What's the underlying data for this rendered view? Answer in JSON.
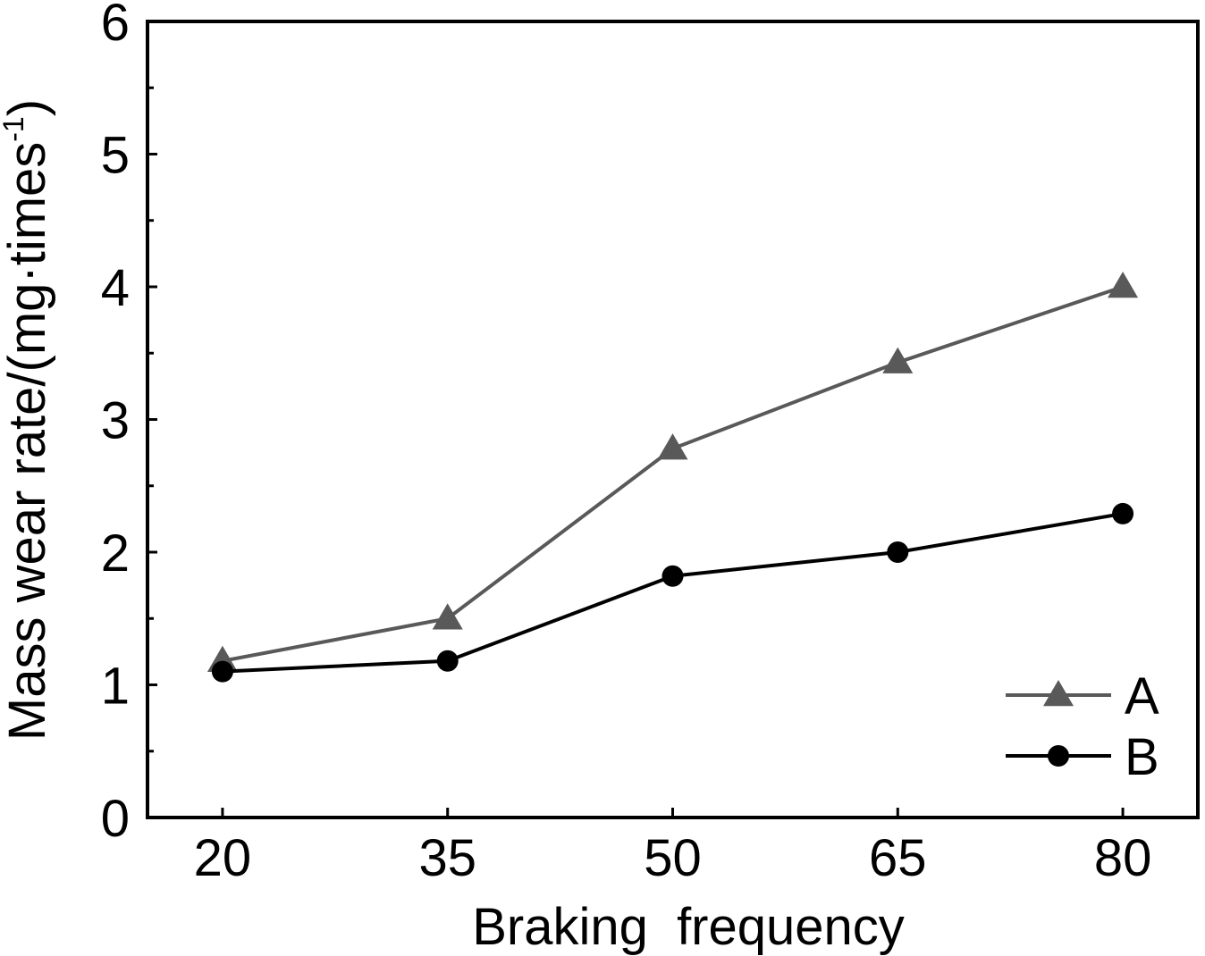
{
  "chart_data": {
    "type": "line",
    "title": "",
    "xlabel": "Braking  frequency",
    "ylabel": {
      "main": "Mass wear rate/(mg·times",
      "superscript": "-1",
      "close": ")"
    },
    "x": [
      20,
      35,
      50,
      65,
      80
    ],
    "x_tick_labels": [
      "20",
      "35",
      "50",
      "65",
      "80"
    ],
    "xlim": [
      15,
      85
    ],
    "ylim": [
      0,
      6
    ],
    "y_ticks": [
      0,
      1,
      2,
      3,
      4,
      5,
      6
    ],
    "y_tick_labels": [
      "0",
      "1",
      "2",
      "3",
      "4",
      "5",
      "6"
    ],
    "y_minor_step": 0.5,
    "grid": false,
    "legend_position": "bottom-right",
    "series": [
      {
        "name": "A",
        "marker": "triangle",
        "color": "#595959",
        "values": [
          1.18,
          1.5,
          2.78,
          3.43,
          4.0
        ]
      },
      {
        "name": "B",
        "marker": "circle",
        "color": "#000000",
        "values": [
          1.1,
          1.18,
          1.82,
          2.0,
          2.29
        ]
      }
    ]
  }
}
